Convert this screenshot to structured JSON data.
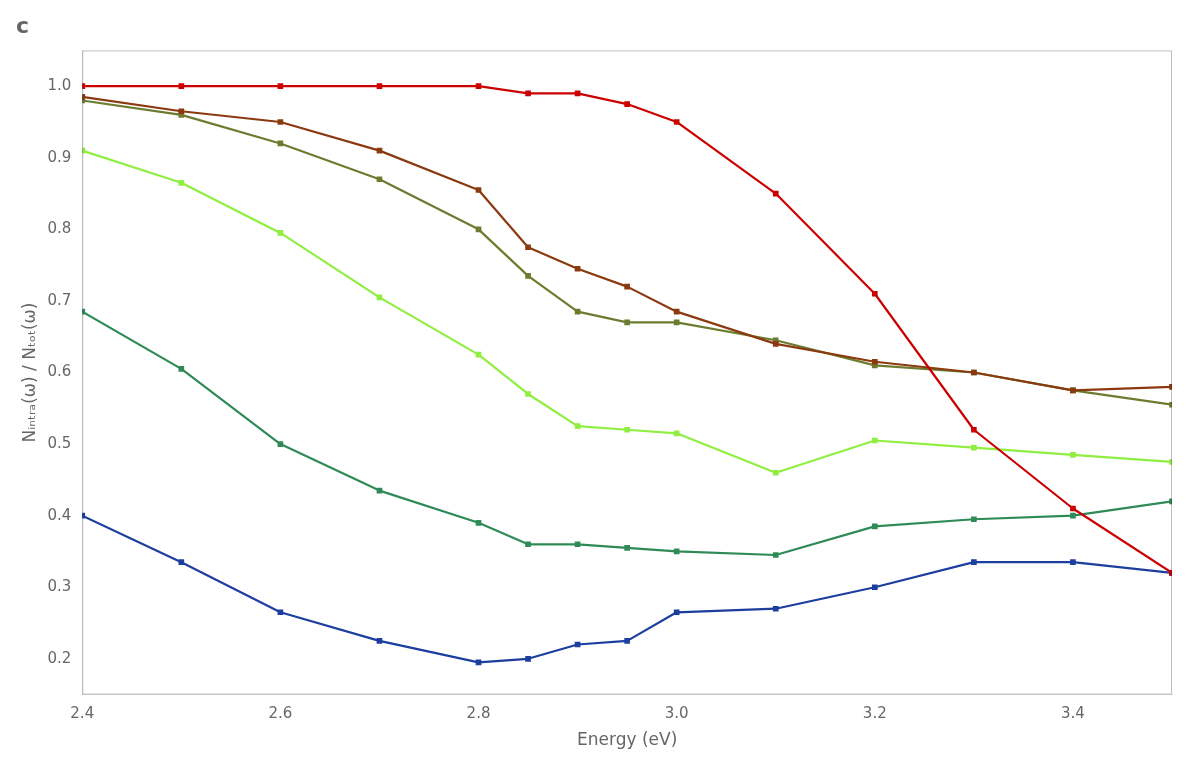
{
  "chart_data": {
    "type": "line",
    "title": "c",
    "xlabel": "Energy (eV)",
    "ylabel": "Nᵢₙₜᵣₐ(ω) / Nₜₒₜ(ω)",
    "x": [
      2.4,
      2.5,
      2.6,
      2.7,
      2.8,
      2.85,
      2.9,
      2.95,
      3.0,
      3.1,
      3.2,
      3.3,
      3.4,
      3.5
    ],
    "xlim": [
      2.4,
      3.5
    ],
    "ylim": [
      0.15,
      1.05
    ],
    "xticks": [
      2.4,
      2.6,
      2.8,
      {
        "value": 3.0,
        "label": "3.0"
      },
      3.2,
      3.4
    ],
    "yticks": [
      0.2,
      0.3,
      0.4,
      0.5,
      0.6,
      0.7,
      0.8,
      0.9,
      {
        "value": 1.0,
        "label": "1.0"
      }
    ],
    "grid": false,
    "marker": "square",
    "series": [
      {
        "color": "#cc0000",
        "values": [
          1.0,
          1.0,
          1.0,
          1.0,
          1.0,
          0.99,
          0.99,
          0.975,
          0.95,
          0.85,
          0.71,
          0.52,
          0.41,
          0.32
        ]
      },
      {
        "color": "#8B3A0F",
        "values": [
          0.985,
          0.965,
          0.95,
          0.91,
          0.855,
          0.775,
          0.745,
          0.72,
          0.685,
          0.64,
          0.615,
          0.6,
          0.575,
          0.58
        ]
      },
      {
        "color": "#6B7C2F",
        "values": [
          0.98,
          0.96,
          0.92,
          0.87,
          0.8,
          0.735,
          0.685,
          0.67,
          0.67,
          0.645,
          0.61,
          0.6,
          0.575,
          0.555
        ]
      },
      {
        "color": "#90EE40",
        "values": [
          0.91,
          0.865,
          0.795,
          0.705,
          0.625,
          0.57,
          0.525,
          0.52,
          0.515,
          0.46,
          0.505,
          0.495,
          0.485,
          0.475
        ]
      },
      {
        "color": "#2E8B57",
        "values": [
          0.685,
          0.605,
          0.5,
          0.435,
          0.39,
          0.36,
          0.36,
          0.355,
          0.35,
          0.345,
          0.385,
          0.395,
          0.4,
          0.42
        ]
      },
      {
        "color": "#1C3E9E",
        "values": [
          0.4,
          0.335,
          0.265,
          0.225,
          0.195,
          0.2,
          0.22,
          0.225,
          0.265,
          0.27,
          0.3,
          0.335,
          0.335,
          0.32
        ]
      }
    ]
  }
}
